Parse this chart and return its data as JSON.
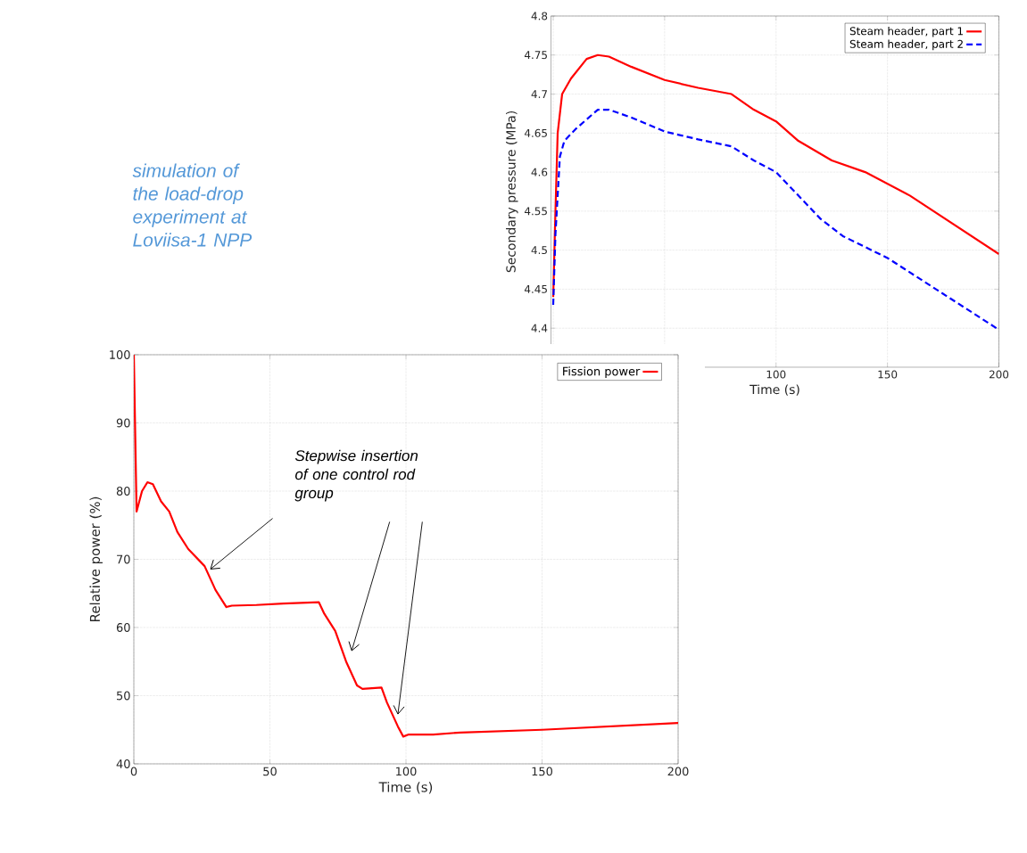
{
  "chart_data": [
    {
      "type": "line",
      "xlabel": "Time (s)",
      "ylabel": "Secondary pressure (MPa)",
      "annotations": [
        "simulation of the load-drop experiment at Loviisa-1 NPP"
      ],
      "xlim": [
        -1,
        200
      ],
      "ylim": [
        4.35,
        4.8
      ],
      "xticks": [
        {
          "value": 0,
          "label": null
        },
        {
          "value": 50,
          "label": null
        },
        100,
        150,
        200
      ],
      "yticks": [
        4.4,
        4.45,
        4.5,
        4.55,
        4.6,
        4.65,
        4.7,
        4.75,
        4.8
      ],
      "grid": true,
      "legend": "top right",
      "series": [
        {
          "name": "Steam header, part 1",
          "color": "#ff0000",
          "line_style": "solid",
          "x": [
            0,
            1,
            2,
            4,
            8,
            15,
            20,
            25,
            35,
            50,
            65,
            80,
            90,
            100,
            110,
            125,
            140,
            160,
            200
          ],
          "values": [
            4.44,
            4.55,
            4.65,
            4.7,
            4.72,
            4.745,
            4.75,
            4.748,
            4.735,
            4.718,
            4.708,
            4.7,
            4.68,
            4.665,
            4.64,
            4.615,
            4.6,
            4.57,
            4.495
          ]
        },
        {
          "name": "Steam header, part 2",
          "color": "#0000ff",
          "line_style": "dashed",
          "x": [
            0,
            1,
            3,
            5,
            10,
            20,
            25,
            35,
            50,
            65,
            80,
            90,
            100,
            110,
            120,
            130,
            150,
            200
          ],
          "values": [
            4.43,
            4.52,
            4.62,
            4.64,
            4.655,
            4.68,
            4.68,
            4.67,
            4.652,
            4.642,
            4.633,
            4.615,
            4.6,
            4.57,
            4.54,
            4.518,
            4.49,
            4.398
          ]
        }
      ]
    },
    {
      "type": "line",
      "xlabel": "Time (s)",
      "ylabel": "Relative power (%)",
      "annotations": [
        "*Stepwise insertion of one control rod group*"
      ],
      "xlim": [
        0,
        200
      ],
      "ylim": [
        40,
        100
      ],
      "xticks": [
        0,
        50,
        100,
        150,
        200
      ],
      "yticks": [
        40,
        50,
        60,
        70,
        80,
        90,
        100
      ],
      "grid": true,
      "legend": "top right",
      "series": [
        {
          "name": "Fission power",
          "color": "#ff0000",
          "line_style": "solid",
          "x": [
            0,
            1,
            3,
            5,
            7,
            10,
            13,
            16,
            20,
            26,
            30,
            34,
            36,
            45,
            55,
            68,
            70,
            74,
            78,
            82,
            84,
            91,
            93,
            97,
            99,
            101,
            110,
            120,
            150,
            200
          ],
          "values": [
            100,
            77,
            80,
            81.3,
            81,
            78.5,
            77,
            74,
            71.5,
            69,
            65.5,
            63,
            63.2,
            63.3,
            63.5,
            63.7,
            62,
            59.5,
            55,
            51.5,
            51,
            51.2,
            49,
            45.5,
            44,
            44.3,
            44.3,
            44.6,
            45,
            46
          ]
        }
      ]
    }
  ]
}
